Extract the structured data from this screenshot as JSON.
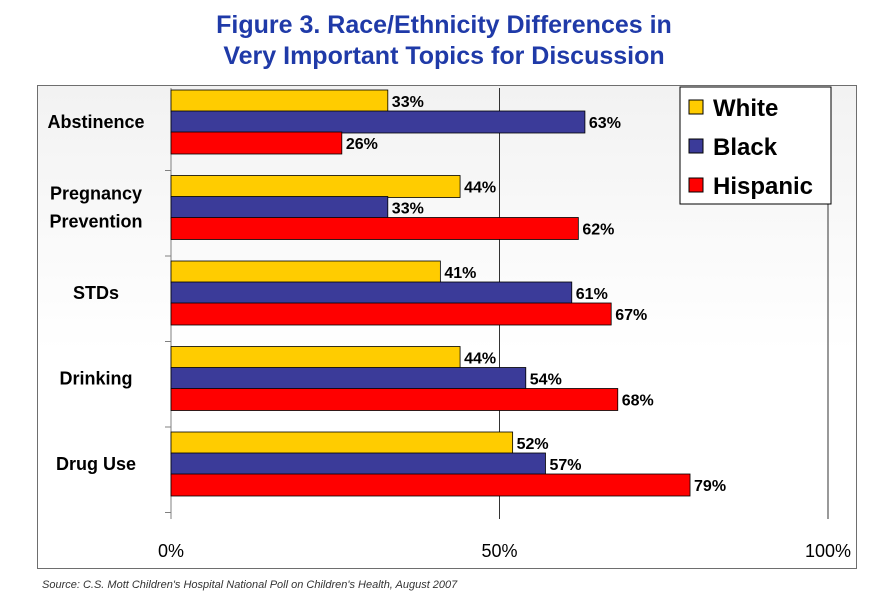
{
  "title_line1": "Figure 3. Race/Ethnicity Differences in",
  "title_line2": "Very Important Topics for Discussion",
  "source": "Source: C.S. Mott Children's Hospital National Poll on Children's Health, August 2007",
  "chart_data": {
    "type": "bar",
    "orientation": "horizontal",
    "title": "Figure 3. Race/Ethnicity Differences in Very Important Topics for Discussion",
    "categories": [
      "Abstinence",
      "Pregnancy\nPrevention",
      "STDs",
      "Drinking",
      "Drug Use"
    ],
    "series": [
      {
        "name": "White",
        "color": "#ffcc00",
        "values": [
          33,
          44,
          41,
          44,
          52
        ]
      },
      {
        "name": "Black",
        "color": "#3b3b99",
        "values": [
          63,
          33,
          61,
          54,
          57
        ]
      },
      {
        "name": "Hispanic",
        "color": "#ff0000",
        "values": [
          26,
          62,
          67,
          68,
          79
        ]
      }
    ],
    "xlim": [
      0,
      100
    ],
    "xticks": [
      "0%",
      "50%",
      "100%"
    ],
    "value_suffix": "%",
    "legend_position": "top-right",
    "grid": true
  }
}
